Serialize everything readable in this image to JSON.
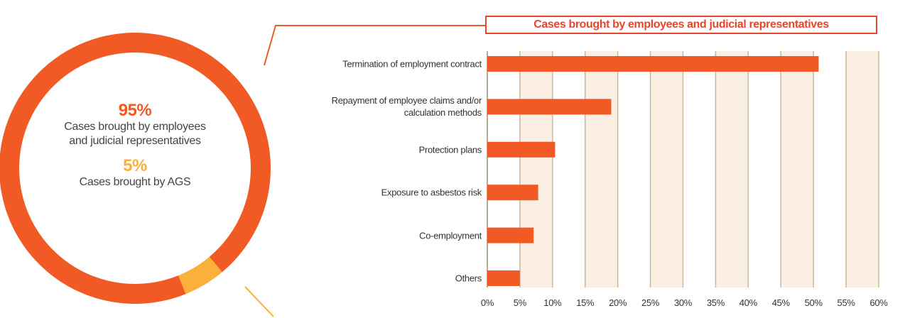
{
  "chart_data": [
    {
      "type": "donut",
      "categories": [
        "Cases brought by employees and judicial representatives",
        "Cases brought by AGS"
      ],
      "values": [
        95,
        5
      ],
      "value_labels": [
        "95%",
        "5%"
      ],
      "colors": [
        "#f15a24",
        "#fbb03b"
      ]
    },
    {
      "type": "bar",
      "orientation": "horizontal",
      "title": "Cases brought by employees and judicial representatives",
      "categories": [
        "Termination of employment contract",
        "Repayment of employee claims and/or calculation methods",
        "Protection plans",
        "Exposure to asbestos risk",
        "Co-employment",
        "Others"
      ],
      "values": [
        50.8,
        19,
        10.4,
        7.8,
        7.1,
        5
      ],
      "color": "#f15a24",
      "xlim": [
        0,
        60
      ],
      "xticks": [
        {
          "value": 0,
          "label": "0%"
        },
        {
          "value": 5,
          "label": "5%"
        },
        {
          "value": 10,
          "label": "10%"
        },
        {
          "value": 15,
          "label": "15%"
        },
        {
          "value": 20,
          "label": "20%"
        },
        {
          "value": 25,
          "label": "25%"
        },
        {
          "value": 30,
          "label": "30%"
        },
        {
          "value": 35,
          "label": "35%"
        },
        {
          "value": 40,
          "label": "40%"
        },
        {
          "value": 45,
          "label": "45%"
        },
        {
          "value": 50,
          "label": "50%"
        },
        {
          "value": 55,
          "label": "55%"
        },
        {
          "value": 60,
          "label": "60%"
        }
      ],
      "grid": true
    }
  ]
}
